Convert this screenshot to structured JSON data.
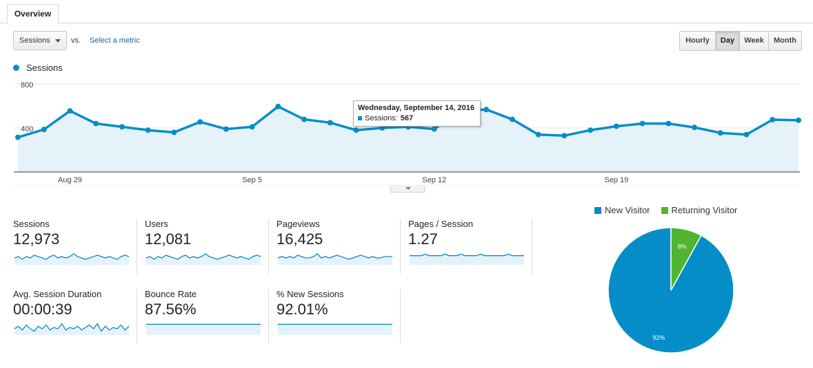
{
  "tabs": {
    "overview": "Overview"
  },
  "controls": {
    "metric_select": "Sessions",
    "vs_label": "vs.",
    "select_metric_link": "Select a metric",
    "granularity": [
      "Hourly",
      "Day",
      "Week",
      "Month"
    ],
    "granularity_active": "Day"
  },
  "colors": {
    "accent": "#058dc7",
    "returning": "#50b432",
    "area_fill": "#e6f2fa"
  },
  "chart_data": [
    {
      "type": "line",
      "legend": [
        "Sessions"
      ],
      "yticks": [
        "800",
        "400"
      ],
      "ylim": [
        0,
        800
      ],
      "xtick_labels": [
        "Aug 29",
        "Sep 5",
        "Sep 12",
        "Sep 19"
      ],
      "series": [
        {
          "name": "Sessions",
          "values": [
            315,
            386,
            555,
            440,
            410,
            380,
            360,
            455,
            390,
            410,
            595,
            478,
            448,
            380,
            400,
            410,
            390,
            560,
            567,
            478,
            340,
            330,
            380,
            415,
            440,
            440,
            405,
            355,
            340,
            475,
            470
          ]
        }
      ],
      "tooltip": {
        "date": "Wednesday, September 14, 2016",
        "series": "Sessions:",
        "value": "567"
      }
    },
    {
      "type": "pie",
      "legend": [
        "New Visitor",
        "Returning Visitor"
      ],
      "slices": [
        {
          "name": "New Visitor",
          "value": 92,
          "label": "92%"
        },
        {
          "name": "Returning Visitor",
          "value": 8,
          "label": "8%"
        }
      ]
    }
  ],
  "scorecards": [
    {
      "label": "Sessions",
      "value": "12,973",
      "spark": [
        5,
        6,
        4,
        6,
        5,
        7,
        6,
        5,
        4,
        6,
        7,
        5,
        6,
        5,
        6,
        8,
        6,
        5,
        4,
        5,
        6,
        7,
        6,
        5,
        6,
        5,
        4,
        6,
        7,
        6
      ]
    },
    {
      "label": "Users",
      "value": "12,081",
      "spark": [
        5,
        6,
        4,
        6,
        5,
        7,
        6,
        5,
        4,
        6,
        7,
        5,
        6,
        5,
        6,
        8,
        6,
        5,
        4,
        5,
        6,
        7,
        6,
        5,
        6,
        5,
        4,
        6,
        7,
        6
      ]
    },
    {
      "label": "Pageviews",
      "value": "16,425",
      "spark": [
        5,
        6,
        5,
        6,
        5,
        7,
        6,
        5,
        5,
        6,
        8,
        5,
        6,
        5,
        6,
        7,
        6,
        5,
        4,
        5,
        6,
        7,
        6,
        5,
        6,
        5,
        5,
        6,
        6,
        6
      ]
    },
    {
      "label": "Pages / Session",
      "value": "1.27",
      "spark": [
        6,
        6,
        6,
        6,
        7,
        6,
        6,
        6,
        6,
        7,
        6,
        6,
        6,
        7,
        6,
        6,
        6,
        6,
        7,
        6,
        6,
        6,
        6,
        6,
        6,
        7,
        6,
        6,
        6,
        6
      ]
    },
    {
      "label": "Avg. Session Duration",
      "value": "00:00:39",
      "spark": [
        5,
        7,
        4,
        8,
        5,
        3,
        7,
        5,
        8,
        4,
        6,
        5,
        9,
        4,
        6,
        5,
        7,
        4,
        6,
        8,
        5,
        9,
        3,
        7,
        4,
        6,
        5,
        8,
        4,
        7
      ]
    },
    {
      "label": "Bounce Rate",
      "value": "87.56%",
      "spark": [
        7,
        7,
        7,
        7,
        7,
        7,
        7,
        7,
        7,
        7,
        7,
        7,
        7,
        7,
        7,
        7,
        7,
        7,
        7,
        7,
        7,
        7,
        7,
        7,
        7,
        7,
        7,
        7,
        7,
        7
      ]
    },
    {
      "label": "% New Sessions",
      "value": "92.01%",
      "spark": [
        7,
        7,
        7,
        7,
        7,
        7,
        7,
        7,
        7,
        7,
        7,
        7,
        7,
        7,
        7,
        7,
        7,
        7,
        7,
        7,
        7,
        7,
        7,
        7,
        7,
        7,
        7,
        7,
        7,
        7
      ]
    }
  ]
}
